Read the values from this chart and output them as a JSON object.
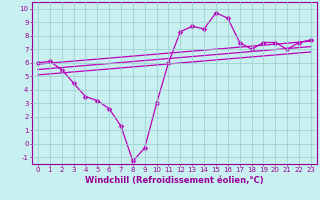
{
  "xlabel": "Windchill (Refroidissement éolien,°C)",
  "background_color": "#c8f0f0",
  "line_color": "#bb00bb",
  "grid_color": "#99cccc",
  "xlim": [
    -0.5,
    23.5
  ],
  "ylim": [
    -1.5,
    10.5
  ],
  "yticks": [
    -1,
    0,
    1,
    2,
    3,
    4,
    5,
    6,
    7,
    8,
    9,
    10
  ],
  "xticks": [
    0,
    1,
    2,
    3,
    4,
    5,
    6,
    7,
    8,
    9,
    10,
    11,
    12,
    13,
    14,
    15,
    16,
    17,
    18,
    19,
    20,
    21,
    22,
    23
  ],
  "line1_x": [
    0,
    1,
    2,
    3,
    4,
    5,
    6,
    7,
    8,
    9,
    10,
    11,
    12,
    13,
    14,
    15,
    16,
    17,
    18,
    19,
    20,
    21,
    22,
    23
  ],
  "line1_y": [
    6.0,
    6.1,
    5.5,
    4.5,
    3.5,
    3.2,
    2.6,
    1.3,
    -1.3,
    -0.3,
    3.0,
    6.0,
    8.3,
    8.7,
    8.5,
    9.7,
    9.3,
    7.5,
    7.0,
    7.5,
    7.5,
    7.0,
    7.5,
    7.7
  ],
  "line2_x": [
    0,
    23
  ],
  "line2_y": [
    5.9,
    7.6
  ],
  "line3_x": [
    0,
    23
  ],
  "line3_y": [
    5.5,
    7.2
  ],
  "line4_x": [
    0,
    23
  ],
  "line4_y": [
    5.1,
    6.8
  ],
  "marker_size": 2.5,
  "line_width": 0.9,
  "tick_fontsize": 5.0,
  "xlabel_fontsize": 6.0,
  "axis_color": "#990099"
}
